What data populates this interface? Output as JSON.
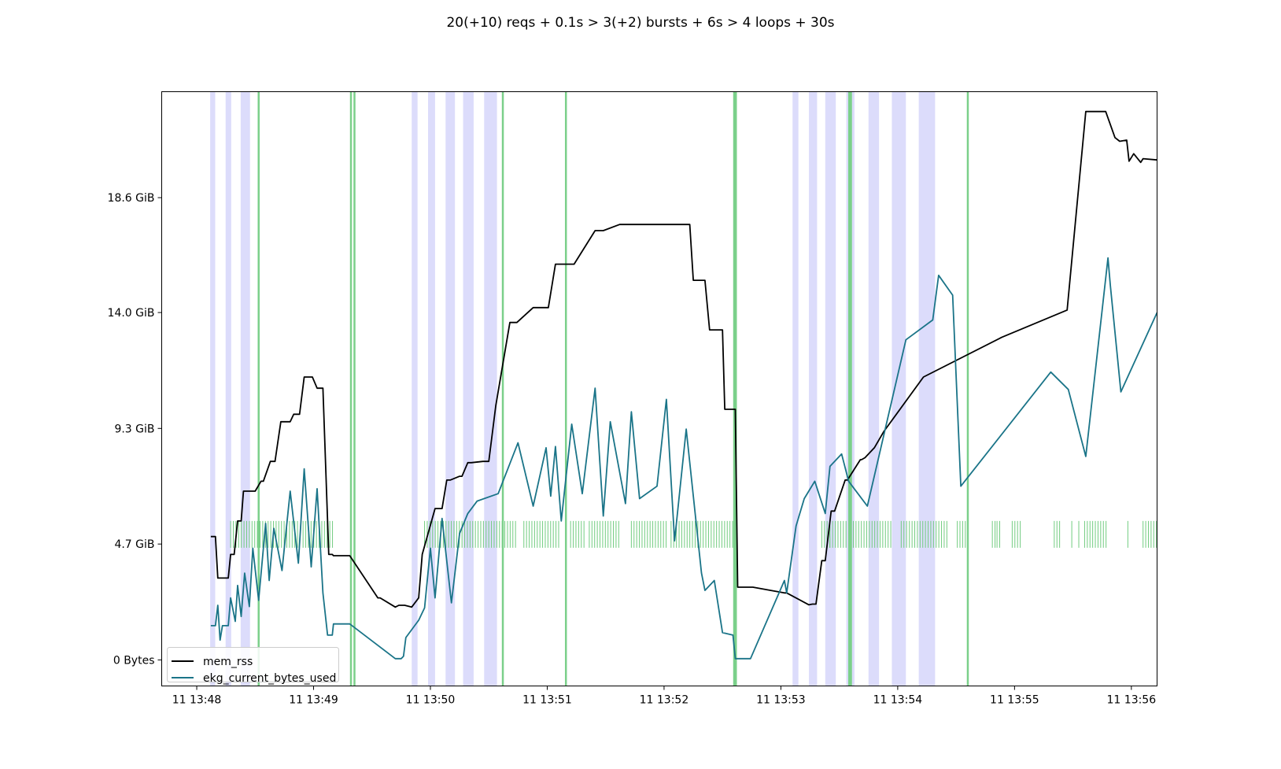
{
  "chart_data": {
    "type": "line",
    "title": "20(+10) reqs + 0.1s > 3(+2) bursts + 6s > 4 loops + 30s",
    "xlabel": "",
    "ylabel": "",
    "x_unit": "minutes after 11 13:48",
    "xlim": [
      -0.3,
      8.22
    ],
    "ylim": [
      -1.05,
      22.9
    ],
    "grid": false,
    "legend_position": "lower-left",
    "x_ticks": [
      {
        "value": 0,
        "label": "11 13:48"
      },
      {
        "value": 1,
        "label": "11 13:49"
      },
      {
        "value": 2,
        "label": "11 13:50"
      },
      {
        "value": 3,
        "label": "11 13:51"
      },
      {
        "value": 4,
        "label": "11 13:52"
      },
      {
        "value": 5,
        "label": "11 13:53"
      },
      {
        "value": 6,
        "label": "11 13:54"
      },
      {
        "value": 7,
        "label": "11 13:55"
      },
      {
        "value": 8,
        "label": "11 13:56"
      }
    ],
    "y_ticks": [
      {
        "value": 0,
        "label": "0 Bytes"
      },
      {
        "value": 4.67,
        "label": "4.7 GiB"
      },
      {
        "value": 9.33,
        "label": "9.3 GiB"
      },
      {
        "value": 14.0,
        "label": "14.0 GiB"
      },
      {
        "value": 18.63,
        "label": "18.6 GiB"
      }
    ],
    "series": [
      {
        "name": "mem_rss",
        "color": "#000000",
        "x": [
          0.12,
          0.16,
          0.18,
          0.27,
          0.29,
          0.32,
          0.35,
          0.38,
          0.4,
          0.45,
          0.49,
          0.5,
          0.55,
          0.57,
          0.63,
          0.67,
          0.72,
          0.8,
          0.83,
          0.88,
          0.92,
          0.99,
          1.03,
          1.08,
          1.13,
          1.16,
          1.17,
          1.18,
          1.31,
          1.55,
          1.57,
          1.7,
          1.73,
          1.78,
          1.84,
          1.9,
          1.93,
          2.04,
          2.06,
          2.1,
          2.14,
          2.17,
          2.25,
          2.27,
          2.32,
          2.35,
          2.45,
          2.5,
          2.56,
          2.68,
          2.74,
          2.88,
          2.92,
          3.01,
          3.07,
          3.18,
          3.23,
          3.41,
          3.48,
          3.62,
          3.68,
          3.73,
          3.78,
          4.22,
          4.25,
          4.35,
          4.39,
          4.5,
          4.52,
          4.61,
          4.63,
          4.74,
          4.76,
          5.03,
          5.05,
          5.24,
          5.27,
          5.3,
          5.35,
          5.38,
          5.43,
          5.46,
          5.55,
          5.57,
          5.68,
          5.69,
          5.72,
          5.8,
          5.88,
          6.22,
          6.89,
          7.45,
          7.61,
          7.78,
          7.86,
          7.9,
          7.96,
          7.98,
          8.02,
          8.08,
          8.1,
          8.22
        ],
        "y": [
          4.97,
          4.97,
          3.3,
          3.3,
          4.25,
          4.25,
          5.6,
          5.6,
          6.8,
          6.8,
          6.8,
          6.8,
          7.2,
          7.2,
          8.0,
          8.0,
          9.6,
          9.6,
          9.9,
          9.9,
          11.4,
          11.4,
          10.95,
          10.95,
          4.25,
          4.25,
          4.2,
          4.2,
          4.2,
          2.5,
          2.5,
          2.13,
          2.2,
          2.2,
          2.13,
          2.5,
          4.25,
          6.1,
          6.1,
          6.1,
          7.25,
          7.25,
          7.4,
          7.4,
          7.95,
          7.95,
          8.0,
          8.0,
          10.25,
          13.6,
          13.6,
          14.2,
          14.2,
          14.2,
          15.95,
          15.95,
          15.95,
          17.3,
          17.3,
          17.55,
          17.55,
          17.55,
          17.55,
          17.55,
          15.3,
          15.3,
          13.3,
          13.3,
          10.1,
          10.1,
          2.93,
          2.93,
          2.93,
          2.7,
          2.7,
          2.22,
          2.25,
          2.25,
          4.0,
          4.0,
          6.0,
          6.0,
          7.25,
          7.25,
          8.07,
          8.07,
          8.15,
          8.55,
          9.2,
          11.4,
          13.0,
          14.1,
          22.1,
          22.1,
          21.05,
          20.9,
          20.95,
          20.1,
          20.4,
          20.05,
          20.2,
          20.15
        ]
      },
      {
        "name": "ekg_current_bytes_used",
        "color": "#1a7488",
        "x": [
          0.12,
          0.16,
          0.18,
          0.2,
          0.22,
          0.27,
          0.29,
          0.33,
          0.35,
          0.38,
          0.41,
          0.45,
          0.48,
          0.53,
          0.59,
          0.62,
          0.66,
          0.73,
          0.8,
          0.87,
          0.92,
          0.98,
          1.03,
          1.08,
          1.12,
          1.16,
          1.17,
          1.19,
          1.31,
          1.7,
          1.75,
          1.77,
          1.79,
          1.9,
          1.95,
          2.0,
          2.04,
          2.1,
          2.18,
          2.25,
          2.32,
          2.4,
          2.58,
          2.75,
          2.88,
          2.99,
          3.03,
          3.07,
          3.12,
          3.21,
          3.3,
          3.41,
          3.48,
          3.54,
          3.67,
          3.72,
          3.79,
          3.94,
          4.02,
          4.09,
          4.19,
          4.32,
          4.35,
          4.43,
          4.5,
          4.59,
          4.61,
          4.69,
          4.74,
          5.03,
          5.05,
          5.13,
          5.2,
          5.29,
          5.38,
          5.42,
          5.52,
          5.58,
          5.74,
          6.07,
          6.3,
          6.35,
          6.47,
          6.54,
          7.31,
          7.46,
          7.61,
          7.8,
          7.82,
          7.91,
          8.22
        ],
        "y": [
          1.38,
          1.38,
          2.2,
          0.8,
          1.38,
          1.38,
          2.5,
          1.55,
          3.0,
          1.75,
          3.5,
          2.15,
          4.5,
          2.4,
          5.5,
          3.2,
          5.3,
          3.6,
          6.8,
          3.9,
          7.7,
          3.75,
          6.9,
          2.7,
          1.0,
          1.0,
          1.45,
          1.45,
          1.45,
          0.05,
          0.05,
          0.15,
          0.9,
          1.6,
          2.1,
          4.5,
          2.5,
          5.7,
          2.3,
          5.1,
          5.9,
          6.4,
          6.7,
          8.75,
          6.2,
          8.55,
          6.6,
          8.6,
          5.6,
          9.5,
          6.7,
          10.95,
          5.8,
          9.6,
          6.3,
          10.0,
          6.5,
          7.0,
          10.5,
          4.8,
          9.3,
          3.5,
          2.8,
          3.2,
          1.1,
          1.0,
          0.05,
          0.05,
          0.05,
          3.2,
          2.7,
          5.4,
          6.5,
          7.2,
          5.9,
          7.8,
          8.3,
          7.2,
          6.2,
          12.9,
          13.7,
          15.5,
          14.7,
          7.0,
          11.6,
          10.9,
          8.2,
          16.2,
          15.1,
          10.8,
          14.0
        ]
      }
    ],
    "vspans": [
      [
        0.115,
        0.158
      ],
      [
        0.247,
        0.295
      ],
      [
        0.376,
        0.456
      ],
      [
        1.84,
        1.89
      ],
      [
        1.98,
        2.04
      ],
      [
        2.13,
        2.21
      ],
      [
        2.28,
        2.37
      ],
      [
        2.46,
        2.57
      ],
      [
        5.1,
        5.15
      ],
      [
        5.24,
        5.31
      ],
      [
        5.38,
        5.47
      ],
      [
        5.56,
        5.63
      ],
      [
        5.75,
        5.84
      ],
      [
        5.95,
        6.07
      ],
      [
        6.18,
        6.32
      ]
    ],
    "vlines": [
      0.53,
      1.32,
      1.35,
      2.62,
      3.16,
      4.6,
      4.615,
      5.585,
      5.6,
      6.6
    ],
    "event_ticks": [
      [
        0.29,
        0.87
      ],
      [
        0.91,
        1.17
      ],
      [
        1.95,
        2.73
      ],
      [
        2.8,
        3.1
      ],
      [
        3.2,
        3.32
      ],
      [
        3.36,
        3.62
      ],
      [
        3.72,
        4.03
      ],
      [
        4.06,
        4.6
      ],
      [
        5.35,
        5.42
      ],
      [
        5.42,
        5.6
      ],
      [
        5.62,
        5.96
      ],
      [
        6.03,
        6.09
      ],
      [
        6.1,
        6.43
      ],
      [
        6.51,
        6.6
      ],
      [
        6.81,
        6.84
      ],
      [
        6.85,
        6.88
      ],
      [
        6.98,
        7.07
      ],
      [
        7.34,
        7.4
      ],
      [
        7.49,
        7.5
      ],
      [
        7.55,
        7.56
      ],
      [
        7.6,
        7.79
      ],
      [
        7.97,
        7.99
      ],
      [
        8.1,
        8.22
      ]
    ],
    "event_band": [
      4.52,
      5.6
    ],
    "span_color": "#dcdcfb",
    "vline_color": "#7bd08a",
    "event_color": "#72cc80"
  }
}
